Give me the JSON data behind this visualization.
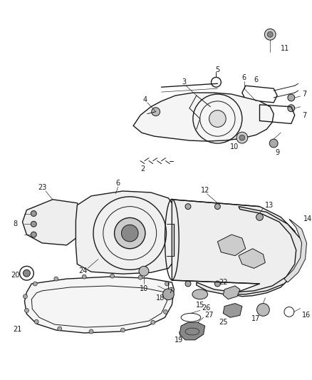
{
  "background_color": "#ffffff",
  "line_color": "#1a1a1a",
  "fig_width": 4.38,
  "fig_height": 5.33,
  "dpi": 100,
  "label_fontsize": 7.0,
  "lw_main": 1.0,
  "lw_med": 0.7,
  "lw_thin": 0.45
}
